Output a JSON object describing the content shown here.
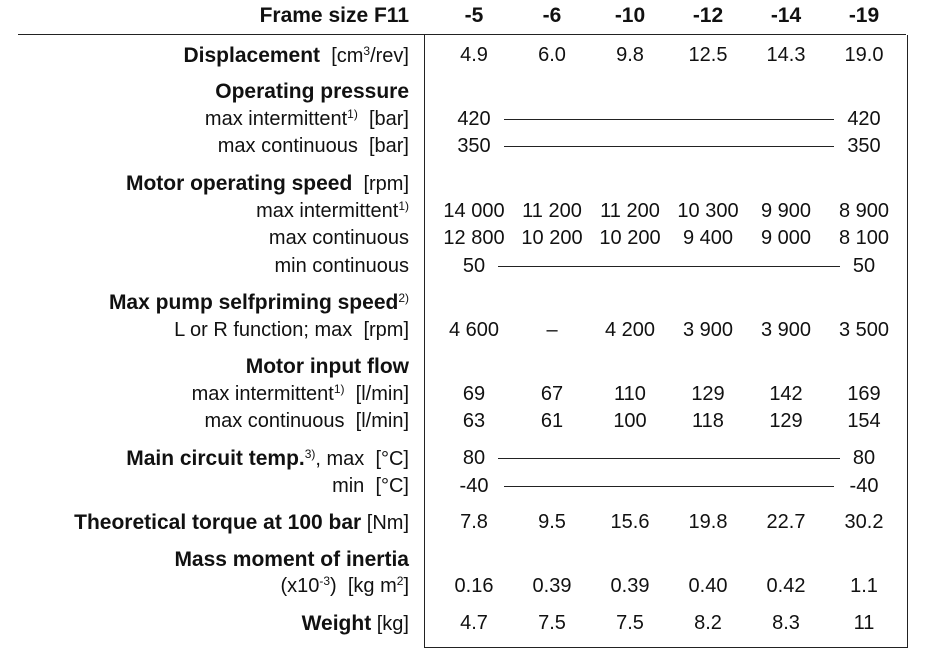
{
  "header": {
    "label": "Frame size F11",
    "columns": [
      "-5",
      "-6",
      "-10",
      "-12",
      "-14",
      "-19"
    ]
  },
  "rows": [
    {
      "label": "Displacement",
      "unit": "[cm",
      "unit_sup": "3",
      "unit_tail": "/rev]",
      "values": [
        "4.9",
        "6.0",
        "9.8",
        "12.5",
        "14.3",
        "19.0"
      ]
    },
    {
      "label": "Operating pressure"
    },
    {
      "label": "max intermittent",
      "sup": "1)",
      "unit": "[bar]",
      "first": "420",
      "last": "420"
    },
    {
      "label": "max continuous",
      "unit": "[bar]",
      "first": "350",
      "last": "350"
    },
    {
      "label": "Motor operating speed",
      "unit": "[rpm]"
    },
    {
      "label": "max intermittent",
      "sup": "1)",
      "values": [
        "14 000",
        "11 200",
        "11 200",
        "10 300",
        "9 900",
        "8 900"
      ]
    },
    {
      "label": "max continuous",
      "values": [
        "12 800",
        "10 200",
        "10 200",
        "9 400",
        "9 000",
        "8 100"
      ]
    },
    {
      "label": "min continuous",
      "first": "50",
      "last": "50"
    },
    {
      "label": "Max pump selfpriming speed",
      "sup": "2)"
    },
    {
      "label": "L or R function; max",
      "unit": "[rpm]",
      "values": [
        "4 600",
        "–",
        "4 200",
        "3 900",
        "3 900",
        "3 500"
      ]
    },
    {
      "label": "Motor input flow"
    },
    {
      "label": "max intermittent",
      "sup": "1)",
      "unit": "[l/min]",
      "values": [
        "69",
        "67",
        "110",
        "129",
        "142",
        "169"
      ]
    },
    {
      "label": "max continuous",
      "unit": "[l/min]",
      "values": [
        "63",
        "61",
        "100",
        "118",
        "129",
        "154"
      ]
    },
    {
      "label": "Main circuit temp.",
      "sup": "3)",
      "tail": ", max",
      "unit": "[°C]",
      "first": "80",
      "last": "80"
    },
    {
      "label": "min",
      "unit": "[°C]",
      "first": "-40",
      "last": "-40"
    },
    {
      "label": "Theoretical torque at 100 bar",
      "unit": "[Nm]",
      "values": [
        "7.8",
        "9.5",
        "15.6",
        "19.8",
        "22.7",
        "30.2"
      ]
    },
    {
      "label": "Mass moment of inertia"
    },
    {
      "label_pre": "(x10",
      "label_sup": "-3",
      "label_post": ")",
      "unit": "[kg m",
      "unit_sup": "2",
      "unit_tail": "]",
      "values": [
        "0.16",
        "0.39",
        "0.39",
        "0.40",
        "0.42",
        "1.1"
      ]
    },
    {
      "label": "Weight",
      "unit": "[kg]",
      "values": [
        "4.7",
        "7.5",
        "7.5",
        "8.2",
        "8.3",
        "11"
      ]
    }
  ]
}
